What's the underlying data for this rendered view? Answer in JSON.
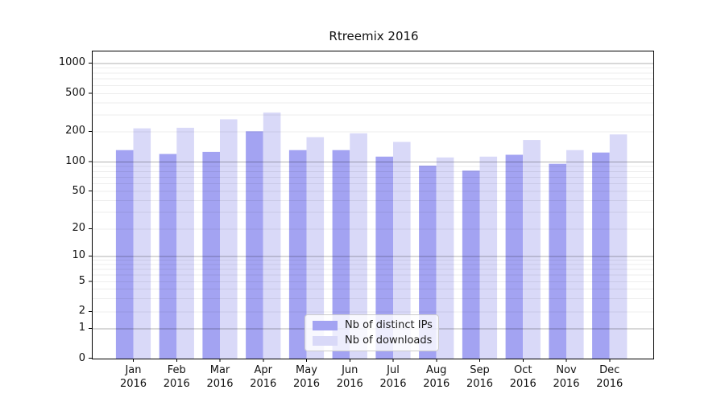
{
  "chart_data": {
    "type": "bar",
    "title": "Rtreemix 2016",
    "categories": [
      "Jan",
      "Feb",
      "Mar",
      "Apr",
      "May",
      "Jun",
      "Jul",
      "Aug",
      "Sep",
      "Oct",
      "Nov",
      "Dec"
    ],
    "category_year": "2016",
    "series": [
      {
        "name": "Nb of distinct IPs",
        "color": "#a3a3f2",
        "values": [
          130,
          119,
          125,
          200,
          130,
          130,
          112,
          91,
          81,
          117,
          95,
          123
        ]
      },
      {
        "name": "Nb of downloads",
        "color": "#d9d9f8",
        "values": [
          215,
          218,
          267,
          315,
          175,
          191,
          157,
          110,
          112,
          164,
          130,
          186
        ]
      }
    ],
    "yscale": "symlog",
    "yticks": [
      1000,
      500,
      200,
      100,
      50,
      20,
      10,
      5,
      2,
      1,
      0
    ],
    "ylim": [
      0,
      1300
    ],
    "grid": true,
    "legend_position": "lower-center"
  },
  "colors": {
    "axis": "#000000",
    "major_grid": "rgba(0,0,0,0.30)",
    "minor_grid": "rgba(0,0,0,0.07)",
    "text": "#111111",
    "legend_border": "#cccccc"
  }
}
